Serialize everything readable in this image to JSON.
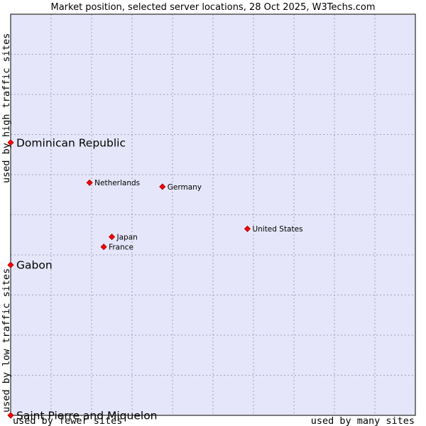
{
  "chart_data": {
    "type": "scatter",
    "title": "Market position, selected server locations, 28 Oct 2025, W3Techs.com",
    "xlabel_left": "used by fewer sites",
    "xlabel_right": "used by many sites",
    "ylabel_top": "used by high traffic sites",
    "ylabel_bottom": "used by low traffic sites",
    "xlim": [
      0,
      10
    ],
    "ylim": [
      0,
      10
    ],
    "grid": true,
    "points": [
      {
        "name": "Dominican Republic",
        "x": 0.0,
        "y": 6.8,
        "size": "large"
      },
      {
        "name": "Netherlands",
        "x": 1.95,
        "y": 5.8,
        "size": "small"
      },
      {
        "name": "Germany",
        "x": 3.75,
        "y": 5.7,
        "size": "small"
      },
      {
        "name": "United States",
        "x": 5.85,
        "y": 4.65,
        "size": "small"
      },
      {
        "name": "Japan",
        "x": 2.5,
        "y": 4.45,
        "size": "small"
      },
      {
        "name": "France",
        "x": 2.3,
        "y": 4.2,
        "size": "small"
      },
      {
        "name": "Gabon",
        "x": 0.0,
        "y": 3.75,
        "size": "large"
      },
      {
        "name": "Saint Pierre and Miquelon",
        "x": 0.0,
        "y": 0.0,
        "size": "large"
      }
    ]
  },
  "colors": {
    "plot_bg": "#e6e6fa",
    "marker_fill": "#ff0000",
    "marker_stroke": "#990000"
  }
}
